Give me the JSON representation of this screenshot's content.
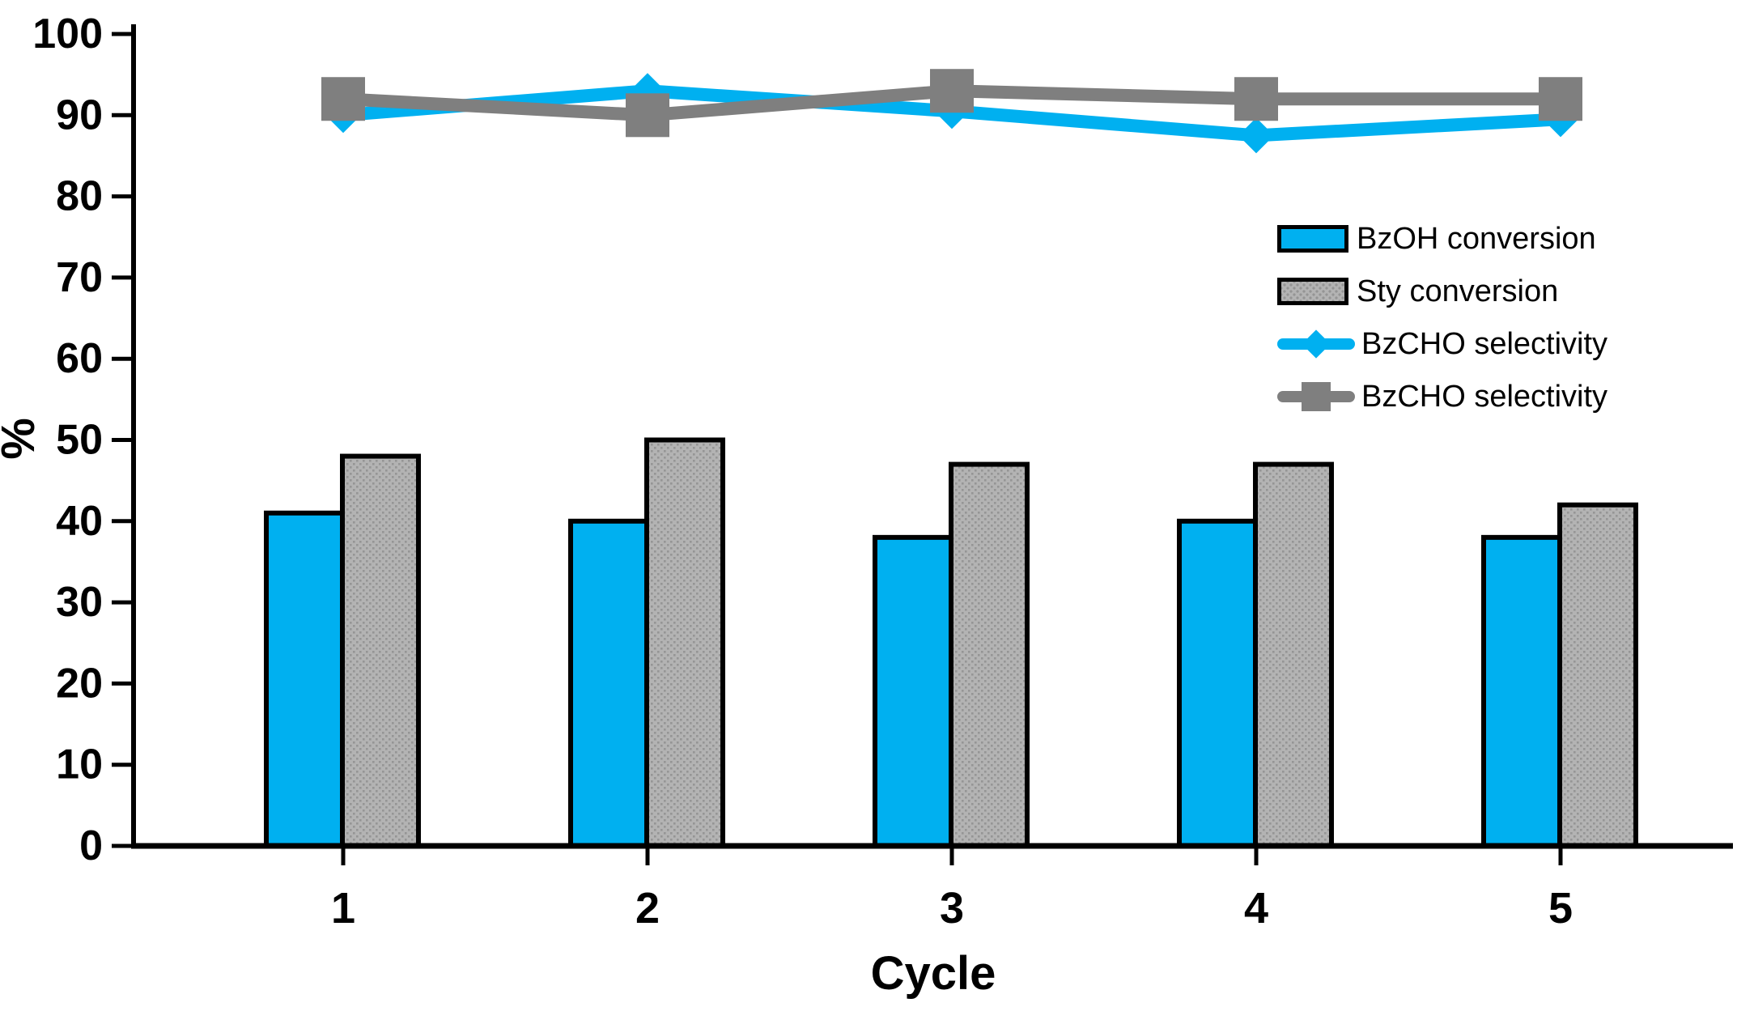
{
  "chart_data": {
    "type": "bar",
    "subtype": "grouped-bars-with-overlaid-lines",
    "categories": [
      "1",
      "2",
      "3",
      "4",
      "5"
    ],
    "series": [
      {
        "name": "BzOH conversion",
        "kind": "bar",
        "color": "#00B0F0",
        "pattern": "solid",
        "values": [
          41,
          40,
          38,
          40,
          38
        ]
      },
      {
        "name": "Sty conversion",
        "kind": "bar",
        "color": "#B3B3B3",
        "pattern": "dots",
        "values": [
          48,
          50,
          47,
          47,
          42
        ]
      },
      {
        "name": "BzCHO selectivity",
        "kind": "line",
        "color": "#00B0F0",
        "marker": "diamond",
        "values": [
          90,
          93,
          90.5,
          87.5,
          89.5
        ]
      },
      {
        "name": "BzCHO selectivity",
        "kind": "line",
        "color": "#7F7F7F",
        "marker": "square",
        "values": [
          92,
          90,
          93,
          92,
          92
        ]
      }
    ],
    "xlabel": "Cycle",
    "ylabel": "%",
    "ylim": [
      0,
      100
    ],
    "ytick_step": 10,
    "yticks": [
      "0",
      "10",
      "20",
      "30",
      "40",
      "50",
      "60",
      "70",
      "80",
      "90",
      "100"
    ],
    "grid": false,
    "legend_position": "right-upper-middle",
    "axis_color": "#000000",
    "background_color": "#FFFFFF",
    "bar_border_color": "#000000"
  }
}
